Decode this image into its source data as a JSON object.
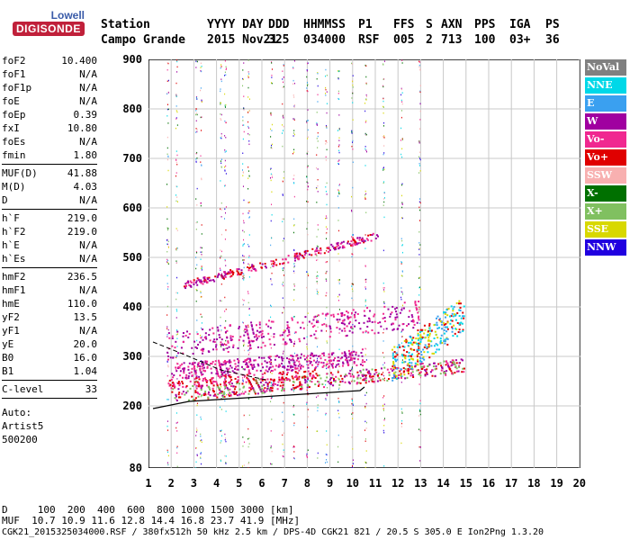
{
  "logo": {
    "line1": "Lowell",
    "line2": "DIGISONDE"
  },
  "header": {
    "row1": [
      "Station",
      "YYYY DAY",
      "DDD",
      "HHMMSS",
      "P1",
      "FFS",
      "S",
      "AXN",
      "PPS",
      "IGA",
      "PS"
    ],
    "row2": [
      "Campo Grande",
      "2015 Nov21",
      "325",
      "034000",
      "RSF",
      "005",
      "2",
      "713",
      "100",
      "03+",
      "36"
    ]
  },
  "params": [
    {
      "k": "foF2",
      "v": "10.400"
    },
    {
      "k": "foF1",
      "v": "N/A"
    },
    {
      "k": "foF1p",
      "v": "N/A"
    },
    {
      "k": "foE",
      "v": "N/A"
    },
    {
      "k": "foEp",
      "v": "0.39"
    },
    {
      "k": "fxI",
      "v": "10.80"
    },
    {
      "k": "foEs",
      "v": "N/A"
    },
    {
      "k": "fmin",
      "v": "1.80"
    },
    {
      "k": "MUF(D)",
      "v": "41.88"
    },
    {
      "k": "M(D)",
      "v": "4.03"
    },
    {
      "k": "D",
      "v": "N/A"
    },
    {
      "k": "h`F",
      "v": "219.0"
    },
    {
      "k": "h`F2",
      "v": "219.0"
    },
    {
      "k": "h`E",
      "v": "N/A"
    },
    {
      "k": "h`Es",
      "v": "N/A"
    },
    {
      "k": "hmF2",
      "v": "236.5"
    },
    {
      "k": "hmF1",
      "v": "N/A"
    },
    {
      "k": "hmE",
      "v": "110.0"
    },
    {
      "k": "yF2",
      "v": "13.5"
    },
    {
      "k": "yF1",
      "v": "N/A"
    },
    {
      "k": "yE",
      "v": "20.0"
    },
    {
      "k": "B0",
      "v": "16.0"
    },
    {
      "k": "B1",
      "v": "1.04"
    },
    {
      "k": "C-level",
      "v": "33"
    }
  ],
  "auto": {
    "l1": "Auto:",
    "l2": "Artist5",
    "l3": "500200"
  },
  "legend": [
    {
      "label": "NoVal",
      "color": "#808080"
    },
    {
      "label": "NNE",
      "color": "#00d8e8"
    },
    {
      "label": "E",
      "color": "#3aa0f0"
    },
    {
      "label": "W",
      "color": "#a000a0"
    },
    {
      "label": "Vo-",
      "color": "#f02890"
    },
    {
      "label": "Vo+",
      "color": "#e00000"
    },
    {
      "label": "SSW",
      "color": "#f8b0b0"
    },
    {
      "label": "X-",
      "color": "#007000"
    },
    {
      "label": "X+",
      "color": "#80c060"
    },
    {
      "label": "SSE",
      "color": "#d8d800"
    },
    {
      "label": "NNW",
      "color": "#2000e0"
    }
  ],
  "axes": {
    "y_ticks": [
      "900",
      "800",
      "700",
      "600",
      "500",
      "400",
      "300",
      "200",
      "80"
    ],
    "x_ticks": [
      "1",
      "2",
      "3",
      "4",
      "5",
      "6",
      "7",
      "8",
      "9",
      "10",
      "11",
      "12",
      "13",
      "14",
      "15",
      "16",
      "17",
      "18",
      "19",
      "20"
    ]
  },
  "footer": {
    "line1": "D     100  200  400  600  800 1000 1500 3000 [km]",
    "line2": "MUF  10.7 10.9 11.6 12.8 14.4 16.8 23.7 41.9 [MHz]",
    "line3": "CGK21_2015325034000.RSF / 380fx512h 50 kHz 2.5 km / DPS-4D CGK21 821 / 20.5 S 305.0 E Ion2Png 1.3.20"
  }
}
